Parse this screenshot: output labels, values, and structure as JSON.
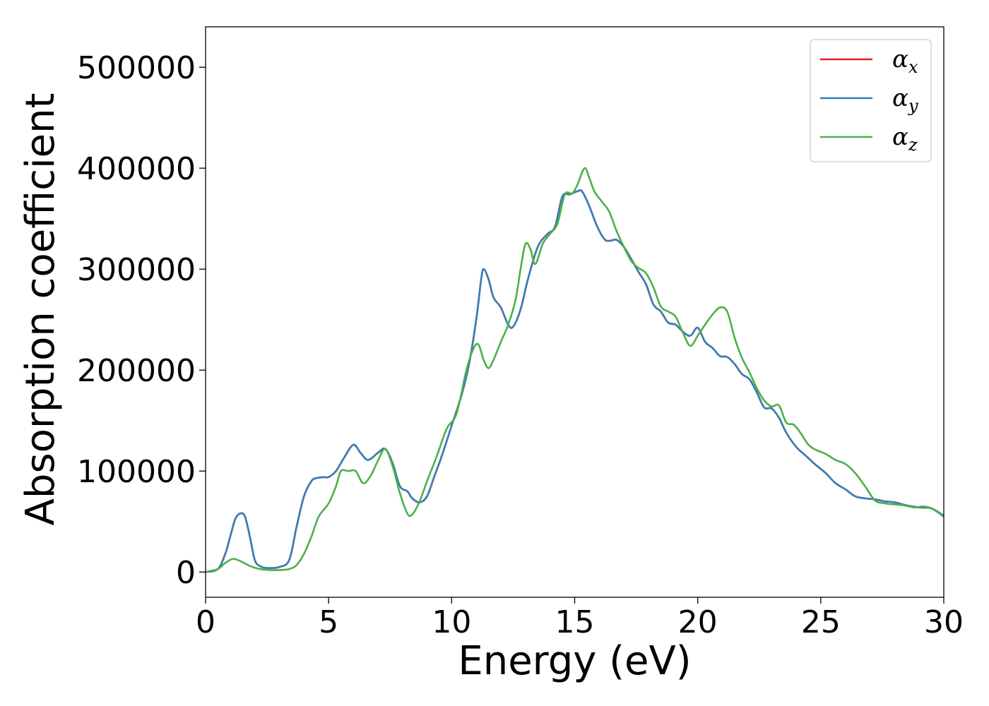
{
  "chart_data": {
    "type": "line",
    "title": "",
    "xlabel": "Energy (eV)",
    "ylabel": "Absorption coefficient",
    "xlim": [
      0,
      30
    ],
    "ylim": [
      -25000,
      540000
    ],
    "xticks": [
      0,
      5,
      10,
      15,
      20,
      25,
      30
    ],
    "yticks": [
      0,
      100000,
      200000,
      300000,
      400000,
      500000
    ],
    "grid": false,
    "legend_position": "top-right",
    "series": [
      {
        "name": "αx",
        "legend_symbol": "α",
        "legend_sub": "x",
        "color": "#e41a1c",
        "x": [
          0,
          0.5,
          0.8,
          1.0,
          1.2,
          1.4,
          1.6,
          1.8,
          2.0,
          2.2,
          2.5,
          3.0,
          3.4,
          3.7,
          4.0,
          4.3,
          4.5,
          4.8,
          5.0,
          5.3,
          5.6,
          6.0,
          6.3,
          6.6,
          7.0,
          7.3,
          7.6,
          7.9,
          8.2,
          8.4,
          8.7,
          9.0,
          9.3,
          9.6,
          10.0,
          10.4,
          10.7,
          11.0,
          11.2,
          11.3,
          11.5,
          11.7,
          12.0,
          12.3,
          12.5,
          12.8,
          13.1,
          13.5,
          13.9,
          14.2,
          14.5,
          14.8,
          15.1,
          15.3,
          15.6,
          15.9,
          16.2,
          16.4,
          16.7,
          17.0,
          17.3,
          17.6,
          17.9,
          18.2,
          18.5,
          18.8,
          19.1,
          19.4,
          19.7,
          20.0,
          20.3,
          20.6,
          20.9,
          21.2,
          21.5,
          21.8,
          22.1,
          22.4,
          22.7,
          23.0,
          23.3,
          23.6,
          24.0,
          24.4,
          24.8,
          25.2,
          25.6,
          26.0,
          26.4,
          26.8,
          27.2,
          27.6,
          28.0,
          28.5,
          29.0,
          29.5,
          30.0
        ],
        "y": [
          0,
          3000,
          18000,
          35000,
          52000,
          58000,
          55000,
          35000,
          12000,
          6000,
          4000,
          5000,
          12000,
          45000,
          75000,
          90000,
          93000,
          94000,
          94000,
          100000,
          112000,
          126000,
          118000,
          111000,
          118000,
          122000,
          108000,
          85000,
          80000,
          73000,
          69000,
          75000,
          95000,
          115000,
          145000,
          175000,
          205000,
          250000,
          290000,
          300000,
          290000,
          272000,
          262000,
          245000,
          243000,
          260000,
          290000,
          322000,
          335000,
          342000,
          372000,
          374000,
          377000,
          377000,
          362000,
          343000,
          330000,
          328000,
          329000,
          322000,
          310000,
          297000,
          285000,
          265000,
          258000,
          247000,
          245000,
          238000,
          234000,
          242000,
          228000,
          222000,
          214000,
          213000,
          206000,
          196000,
          191000,
          178000,
          163000,
          162000,
          153000,
          138000,
          124000,
          115000,
          106000,
          98000,
          88000,
          82000,
          75000,
          73000,
          72000,
          70000,
          69000,
          66000,
          64000,
          63000,
          55000
        ]
      },
      {
        "name": "αy",
        "legend_symbol": "α",
        "legend_sub": "y",
        "color": "#377eb8",
        "x": [
          0,
          0.5,
          0.8,
          1.0,
          1.2,
          1.4,
          1.6,
          1.8,
          2.0,
          2.2,
          2.5,
          3.0,
          3.4,
          3.7,
          4.0,
          4.3,
          4.5,
          4.8,
          5.0,
          5.3,
          5.6,
          6.0,
          6.3,
          6.6,
          7.0,
          7.3,
          7.6,
          7.9,
          8.2,
          8.4,
          8.7,
          9.0,
          9.3,
          9.6,
          10.0,
          10.4,
          10.7,
          11.0,
          11.2,
          11.3,
          11.5,
          11.7,
          12.0,
          12.3,
          12.5,
          12.8,
          13.1,
          13.5,
          13.9,
          14.2,
          14.5,
          14.8,
          15.1,
          15.3,
          15.6,
          15.9,
          16.2,
          16.4,
          16.7,
          17.0,
          17.3,
          17.6,
          17.9,
          18.2,
          18.5,
          18.8,
          19.1,
          19.4,
          19.7,
          20.0,
          20.3,
          20.6,
          20.9,
          21.2,
          21.5,
          21.8,
          22.1,
          22.4,
          22.7,
          23.0,
          23.3,
          23.6,
          24.0,
          24.4,
          24.8,
          25.2,
          25.6,
          26.0,
          26.4,
          26.8,
          27.2,
          27.6,
          28.0,
          28.5,
          29.0,
          29.5,
          30.0
        ],
        "y": [
          0,
          3000,
          18000,
          35000,
          52000,
          58000,
          55000,
          35000,
          12000,
          6000,
          4000,
          5000,
          12000,
          45000,
          75000,
          90000,
          93000,
          94000,
          94000,
          100000,
          112000,
          126000,
          118000,
          111000,
          118000,
          122000,
          108000,
          85000,
          80000,
          73000,
          69000,
          75000,
          95000,
          115000,
          145000,
          175000,
          205000,
          250000,
          290000,
          300000,
          290000,
          272000,
          262000,
          245000,
          243000,
          260000,
          290000,
          322000,
          335000,
          342000,
          372000,
          374000,
          377000,
          377000,
          362000,
          343000,
          330000,
          328000,
          329000,
          322000,
          310000,
          297000,
          285000,
          265000,
          258000,
          247000,
          245000,
          238000,
          234000,
          242000,
          228000,
          222000,
          214000,
          213000,
          206000,
          196000,
          191000,
          178000,
          163000,
          162000,
          153000,
          138000,
          124000,
          115000,
          106000,
          98000,
          88000,
          82000,
          75000,
          73000,
          72000,
          70000,
          69000,
          66000,
          64000,
          63000,
          55000
        ]
      },
      {
        "name": "αz",
        "legend_symbol": "α",
        "legend_sub": "z",
        "color": "#4daf4a",
        "x": [
          0,
          0.5,
          0.8,
          1.1,
          1.4,
          1.8,
          2.2,
          2.6,
          3.0,
          3.4,
          3.7,
          4.0,
          4.3,
          4.6,
          5.0,
          5.3,
          5.5,
          5.8,
          6.1,
          6.4,
          6.7,
          7.0,
          7.3,
          7.6,
          7.9,
          8.2,
          8.4,
          8.7,
          9.0,
          9.4,
          9.8,
          10.2,
          10.6,
          10.9,
          11.1,
          11.3,
          11.5,
          11.7,
          12.0,
          12.3,
          12.6,
          12.8,
          13.0,
          13.2,
          13.4,
          13.7,
          14.0,
          14.3,
          14.6,
          14.9,
          15.1,
          15.4,
          15.6,
          15.8,
          16.1,
          16.4,
          16.7,
          17.0,
          17.3,
          17.6,
          17.9,
          18.2,
          18.5,
          18.8,
          19.1,
          19.4,
          19.7,
          20.0,
          20.3,
          20.6,
          20.9,
          21.2,
          21.5,
          21.8,
          22.1,
          22.4,
          22.7,
          23.0,
          23.3,
          23.6,
          23.9,
          24.2,
          24.5,
          24.8,
          25.2,
          25.6,
          26.0,
          26.4,
          26.8,
          27.2,
          27.6,
          28.0,
          28.4,
          28.8,
          29.2,
          29.6,
          30.0
        ],
        "y": [
          0,
          3000,
          9000,
          13000,
          11000,
          6000,
          3000,
          2000,
          2000,
          3000,
          7000,
          18000,
          35000,
          55000,
          68000,
          85000,
          100000,
          100000,
          100000,
          88000,
          95000,
          110000,
          122000,
          105000,
          78000,
          58000,
          57000,
          70000,
          90000,
          115000,
          142000,
          157000,
          200000,
          222000,
          225000,
          210000,
          202000,
          210000,
          228000,
          245000,
          270000,
          300000,
          325000,
          320000,
          305000,
          325000,
          335000,
          345000,
          374000,
          375000,
          383000,
          400000,
          390000,
          377000,
          367000,
          357000,
          338000,
          322000,
          308000,
          301000,
          296000,
          282000,
          263000,
          258000,
          253000,
          237000,
          224000,
          234000,
          245000,
          255000,
          262000,
          258000,
          232000,
          212000,
          198000,
          182000,
          170000,
          164000,
          165000,
          148000,
          146000,
          137000,
          126000,
          121000,
          117000,
          111000,
          107000,
          98000,
          85000,
          71000,
          68000,
          67000,
          66000,
          64000,
          65000,
          62000,
          56000
        ]
      }
    ]
  }
}
